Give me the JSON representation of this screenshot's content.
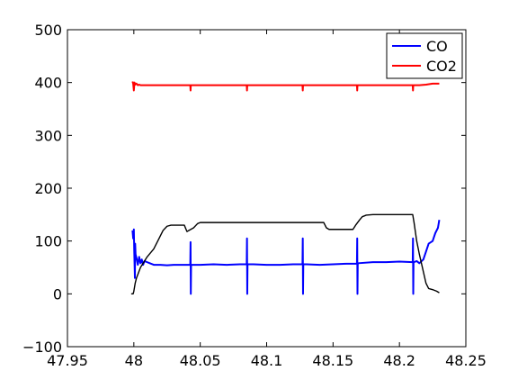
{
  "chart_data": {
    "type": "line",
    "title": "",
    "xlabel": "",
    "ylabel": "",
    "xlim": [
      47.95,
      48.25
    ],
    "ylim": [
      -100,
      500
    ],
    "grid": false,
    "legend_position": "top-right",
    "x_ticks": [
      47.95,
      48,
      48.05,
      48.1,
      48.15,
      48.2,
      48.25
    ],
    "x_tick_labels": [
      "47.95",
      "48",
      "48.05",
      "48.1",
      "48.15",
      "48.2",
      "48.25"
    ],
    "y_ticks": [
      -100,
      0,
      100,
      200,
      300,
      400,
      500
    ],
    "y_tick_labels": [
      "−100",
      "0",
      "100",
      "200",
      "300",
      "400",
      "500"
    ],
    "series": [
      {
        "name": "CO",
        "color": "#0000ff",
        "in_legend": true,
        "x": [
          47.999,
          47.9995,
          48.0,
          48.0003,
          48.0005,
          48.0008,
          48.001,
          48.0013,
          48.002,
          48.003,
          48.004,
          48.005,
          48.006,
          48.007,
          48.008,
          48.01,
          48.012,
          48.015,
          48.02,
          48.025,
          48.03,
          48.035,
          48.04,
          48.0425,
          48.0427,
          48.0429,
          48.0431,
          48.0433,
          48.0435,
          48.045,
          48.05,
          48.06,
          48.07,
          48.08,
          48.085,
          48.0852,
          48.0854,
          48.0856,
          48.0858,
          48.086,
          48.09,
          48.1,
          48.11,
          48.12,
          48.127,
          48.1272,
          48.1274,
          48.1276,
          48.1278,
          48.128,
          48.13,
          48.14,
          48.15,
          48.16,
          48.168,
          48.1682,
          48.1684,
          48.1686,
          48.1688,
          48.169,
          48.18,
          48.19,
          48.2,
          48.21,
          48.2102,
          48.2104,
          48.2106,
          48.2108,
          48.211,
          48.213,
          48.215,
          48.218,
          48.22,
          48.222,
          48.225,
          48.227,
          48.229,
          48.23
        ],
        "y": [
          120,
          105,
          122,
          80,
          60,
          30,
          95,
          75,
          68,
          55,
          70,
          58,
          65,
          55,
          62,
          60,
          58,
          55,
          55,
          54,
          55,
          55,
          55,
          55,
          98,
          0,
          55,
          55,
          55,
          55,
          55,
          56,
          55,
          56,
          56,
          105,
          0,
          56,
          56,
          56,
          56,
          55,
          55,
          56,
          56,
          105,
          0,
          56,
          56,
          56,
          56,
          55,
          56,
          57,
          57,
          105,
          0,
          57,
          57,
          58,
          60,
          60,
          61,
          60,
          105,
          0,
          60,
          60,
          60,
          62,
          58,
          65,
          80,
          95,
          100,
          115,
          125,
          140
        ]
      },
      {
        "name": "CO2",
        "color": "#ff0000",
        "in_legend": true,
        "x": [
          47.999,
          47.9995,
          48.0,
          48.0005,
          48.001,
          48.002,
          48.003,
          48.004,
          48.005,
          48.01,
          48.02,
          48.03,
          48.04,
          48.0425,
          48.0427,
          48.0429,
          48.045,
          48.05,
          48.06,
          48.07,
          48.08,
          48.085,
          48.0852,
          48.0854,
          48.09,
          48.1,
          48.11,
          48.12,
          48.127,
          48.1272,
          48.1274,
          48.13,
          48.14,
          48.15,
          48.16,
          48.168,
          48.1682,
          48.1684,
          48.17,
          48.18,
          48.19,
          48.2,
          48.21,
          48.2102,
          48.2104,
          48.215,
          48.22,
          48.225,
          48.23
        ],
        "y": [
          402,
          398,
          385,
          400,
          396,
          398,
          395,
          396,
          395,
          395,
          395,
          395,
          395,
          395,
          385,
          395,
          395,
          395,
          395,
          395,
          395,
          395,
          385,
          395,
          395,
          395,
          395,
          395,
          395,
          385,
          395,
          395,
          395,
          395,
          395,
          395,
          385,
          395,
          395,
          395,
          395,
          395,
          395,
          385,
          395,
          395,
          396,
          398,
          398
        ]
      },
      {
        "name": "",
        "color": "#000000",
        "in_legend": false,
        "x": [
          47.998,
          47.9995,
          48.0,
          48.001,
          48.002,
          48.005,
          48.01,
          48.015,
          48.018,
          48.02,
          48.022,
          48.025,
          48.028,
          48.03,
          48.035,
          48.038,
          48.04,
          48.045,
          48.048,
          48.05,
          48.06,
          48.07,
          48.08,
          48.09,
          48.1,
          48.11,
          48.12,
          48.13,
          48.14,
          48.143,
          48.145,
          48.147,
          48.15,
          48.16,
          48.165,
          48.167,
          48.17,
          48.172,
          48.175,
          48.18,
          48.19,
          48.2,
          48.21,
          48.211,
          48.213,
          48.215,
          48.22,
          48.222,
          48.225,
          48.228,
          48.23
        ],
        "y": [
          0,
          0,
          5,
          20,
          30,
          50,
          70,
          85,
          100,
          110,
          120,
          128,
          130,
          130,
          130,
          130,
          118,
          125,
          133,
          135,
          135,
          135,
          135,
          135,
          135,
          135,
          135,
          135,
          135,
          135,
          125,
          122,
          122,
          122,
          122,
          130,
          140,
          146,
          149,
          150,
          150,
          150,
          150,
          135,
          100,
          75,
          20,
          10,
          8,
          5,
          2
        ]
      }
    ]
  }
}
